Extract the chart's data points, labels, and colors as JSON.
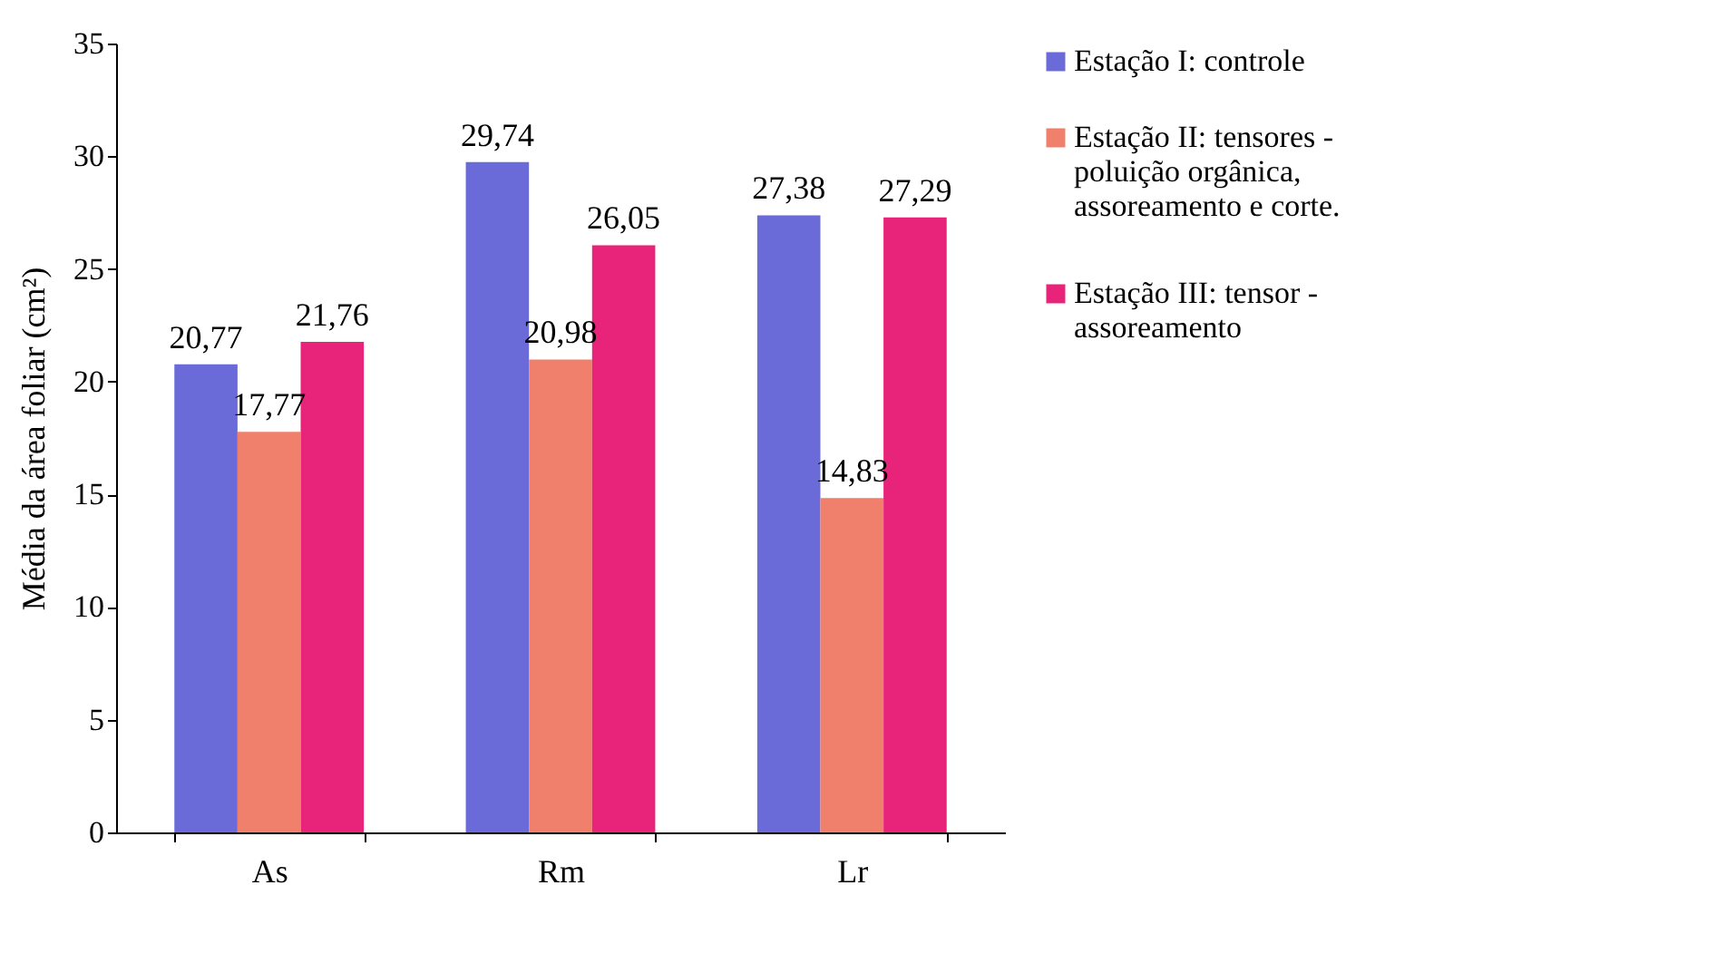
{
  "chart_data": {
    "type": "bar",
    "ylabel": "Média da área foliar (cm²)",
    "categories": [
      "As",
      "Rm",
      "Lr"
    ],
    "series": [
      {
        "name": "Estação I: controle",
        "color": "#6a6ad8",
        "values": [
          20.77,
          29.74,
          27.38
        ],
        "value_labels": [
          "20,77",
          "29,74",
          "27,38"
        ]
      },
      {
        "name": "Estação II: tensores - poluição orgânica, assoreamento e corte.",
        "color": "#f0806c",
        "values": [
          17.77,
          20.98,
          14.83
        ],
        "value_labels": [
          "17,77",
          "20,98",
          "14,83"
        ]
      },
      {
        "name": "Estação III: tensor - assoreamento",
        "color": "#e8247a",
        "values": [
          21.76,
          26.05,
          27.29
        ],
        "value_labels": [
          "21,76",
          "26,05",
          "27,29"
        ]
      }
    ],
    "ylim": [
      0,
      35
    ],
    "yticks": [
      0,
      5,
      10,
      15,
      20,
      25,
      30,
      35
    ],
    "grid": false,
    "legend": "right"
  }
}
